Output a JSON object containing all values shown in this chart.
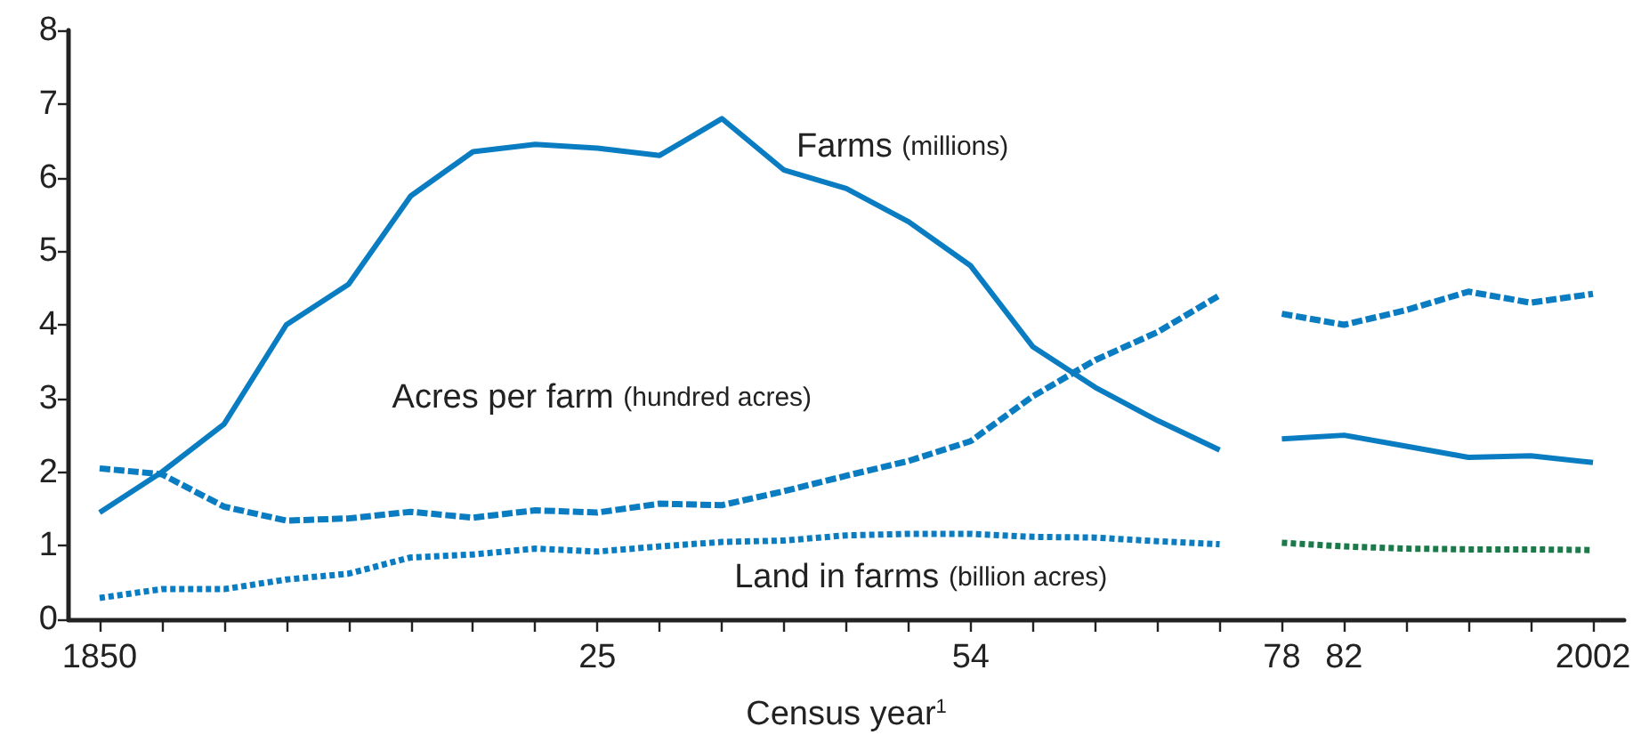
{
  "chart_data": {
    "type": "line",
    "xlabel": "Census year$^{1}$",
    "categories": [
      "1850",
      null,
      null,
      null,
      null,
      null,
      null,
      null,
      "25",
      null,
      null,
      null,
      null,
      null,
      "54",
      null,
      null,
      null,
      null,
      "78",
      "82",
      null,
      null,
      null,
      "2002"
    ],
    "ylim": [
      0,
      8
    ],
    "yticks": [
      0,
      1,
      2,
      3,
      4,
      5,
      6,
      7,
      8
    ],
    "grid": false,
    "legend": false,
    "marker": "none",
    "series": [
      {
        "name": "Farms (millions)",
        "color": "#0a7dc2",
        "line_style": "solid",
        "values": [
          1.45,
          2.0,
          2.65,
          4.0,
          4.55,
          5.75,
          6.35,
          6.45,
          6.4,
          6.3,
          6.8,
          6.1,
          5.85,
          5.4,
          4.8,
          3.7,
          3.15,
          2.7,
          2.3,
          null,
          null,
          null,
          null,
          null,
          null
        ]
      },
      {
        "color": "#0a7dc2",
        "line_style": "solid",
        "values": [
          null,
          null,
          null,
          null,
          null,
          null,
          null,
          null,
          null,
          null,
          null,
          null,
          null,
          null,
          null,
          null,
          null,
          null,
          null,
          2.45,
          2.5,
          2.35,
          2.2,
          2.22,
          2.13
        ]
      },
      {
        "name": "Acres per farm (hundred acres)",
        "color": "#0a7dc2",
        "line_style": "dashed",
        "values": [
          2.05,
          1.97,
          1.53,
          1.34,
          1.37,
          1.46,
          1.38,
          1.48,
          1.45,
          1.57,
          1.55,
          1.74,
          1.95,
          2.15,
          2.42,
          3.03,
          3.52,
          3.9,
          4.4,
          null,
          null,
          null,
          null,
          null,
          null
        ]
      },
      {
        "color": "#0a7dc2",
        "line_style": "dashed",
        "values": [
          null,
          null,
          null,
          null,
          null,
          null,
          null,
          null,
          null,
          null,
          null,
          null,
          null,
          null,
          null,
          null,
          null,
          null,
          null,
          4.15,
          4.0,
          4.2,
          4.45,
          4.3,
          4.42
        ]
      },
      {
        "name": "Land in farms (billion acres)",
        "color": "#0a7dc2",
        "line_style": "dotted",
        "values": [
          0.29,
          0.41,
          0.41,
          0.54,
          0.62,
          0.84,
          0.88,
          0.96,
          0.92,
          0.99,
          1.05,
          1.07,
          1.14,
          1.16,
          1.16,
          1.12,
          1.11,
          1.06,
          1.02,
          null,
          null,
          null,
          null,
          null,
          null
        ]
      },
      {
        "color": "#1a7a4a",
        "line_style": "dotted",
        "values": [
          null,
          null,
          null,
          null,
          null,
          null,
          null,
          null,
          null,
          null,
          null,
          null,
          null,
          null,
          null,
          null,
          null,
          null,
          null,
          1.04,
          0.99,
          0.96,
          0.95,
          0.95,
          0.94
        ]
      }
    ]
  }
}
